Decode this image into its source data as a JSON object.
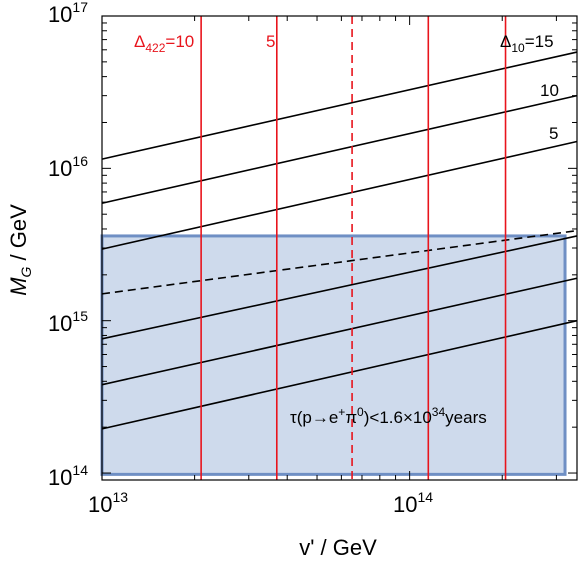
{
  "chart_data": {
    "type": "line",
    "title": "",
    "xlabel": "v' / GeV",
    "ylabel_main": "M",
    "ylabel_sub": "G",
    "ylabel_rest": " / GeV",
    "x_scale": "log",
    "y_scale": "log",
    "xlim": [
      10000000000000.0,
      350000000000000.0
    ],
    "ylim": [
      90000000000000.0,
      1e+17
    ],
    "x_ticks": [
      {
        "value": 10000000000000.0,
        "base": "10",
        "exp": "13"
      },
      {
        "value": 100000000000000.0,
        "base": "10",
        "exp": "14"
      }
    ],
    "y_ticks": [
      {
        "value": 100000000000000.0,
        "base": "10",
        "exp": "14"
      },
      {
        "value": 1000000000000000.0,
        "base": "10",
        "exp": "15"
      },
      {
        "value": 1e+16,
        "base": "10",
        "exp": "16"
      },
      {
        "value": 1e+17,
        "base": "10",
        "exp": "17"
      }
    ],
    "grid": false,
    "colors": {
      "black": "#000000",
      "red": "#e8141c",
      "region_fill": "#c9d6ea",
      "region_edge": "#6f8fc4"
    },
    "black_lines": [
      {
        "style": "solid",
        "x": [
          10000000000000.0,
          350000000000000.0
        ],
        "y": [
          1.15e+16,
          5.8e+16
        ]
      },
      {
        "style": "solid",
        "x": [
          10000000000000.0,
          350000000000000.0
        ],
        "y": [
          5900000000000000.0,
          3e+16
        ]
      },
      {
        "style": "solid",
        "x": [
          10000000000000.0,
          350000000000000.0
        ],
        "y": [
          2950000000000000.0,
          1.5e+16
        ]
      },
      {
        "style": "dashed",
        "x": [
          10000000000000.0,
          350000000000000.0
        ],
        "y": [
          1500000000000000.0,
          3900000000000000.0
        ]
      },
      {
        "style": "solid",
        "x": [
          10000000000000.0,
          350000000000000.0
        ],
        "y": [
          760000000000000.0,
          3600000000000000.0
        ]
      },
      {
        "style": "solid",
        "x": [
          10000000000000.0,
          350000000000000.0
        ],
        "y": [
          380000000000000.0,
          1900000000000000.0
        ]
      },
      {
        "style": "solid",
        "x": [
          10000000000000.0,
          350000000000000.0
        ],
        "y": [
          195000000000000.0,
          1000000000000000.0
        ]
      }
    ],
    "red_lines": [
      {
        "style": "solid",
        "x": 21000000000000.0
      },
      {
        "style": "solid",
        "x": 37000000000000.0
      },
      {
        "style": "dashed",
        "x": 65000000000000.0
      },
      {
        "style": "solid",
        "x": 115000000000000.0
      },
      {
        "style": "solid",
        "x": 205000000000000.0
      }
    ],
    "excluded_region": {
      "x": [
        10000000000000.0,
        320000000000000.0
      ],
      "y": [
        98000000000000.0,
        3600000000000000.0
      ]
    },
    "annotations": {
      "delta422": {
        "sym": "Δ",
        "sub": "422",
        "rest": "=10"
      },
      "red5": "5",
      "delta10": {
        "sym": "Δ",
        "sub": "10",
        "rest": "=15"
      },
      "black10": "10",
      "black5": "5",
      "tau": {
        "part1": "τ(p→e",
        "sup1": "+",
        "part2": "π",
        "sup2": "0",
        "part3": ")<1.6×10",
        "sup3": "34",
        "part4": "years"
      }
    }
  }
}
